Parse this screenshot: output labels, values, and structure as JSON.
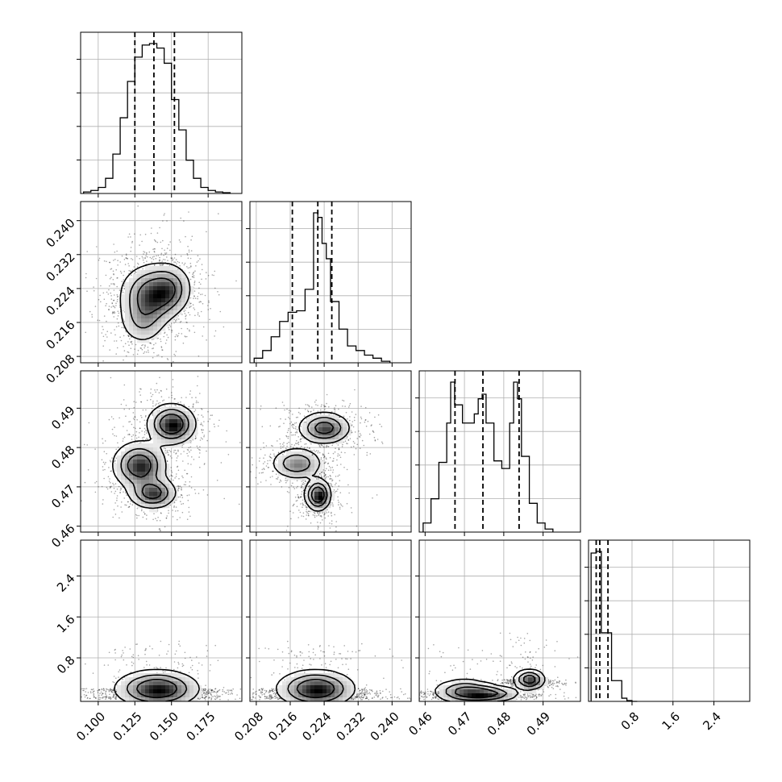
{
  "chart_data": {
    "type": "corner",
    "grid": true,
    "parameters": [
      {
        "range": [
          0.088,
          0.198
        ],
        "ticks": [
          0.1,
          0.125,
          0.15,
          0.175
        ],
        "tick_labels": [
          "0.100",
          "0.125",
          "0.150",
          "0.175"
        ],
        "quantiles": [
          0.125,
          0.138,
          0.152
        ],
        "hist": {
          "edges": [
            0.09,
            0.095,
            0.1,
            0.105,
            0.11,
            0.115,
            0.12,
            0.125,
            0.13,
            0.135,
            0.14,
            0.145,
            0.15,
            0.155,
            0.16,
            0.165,
            0.17,
            0.175,
            0.18,
            0.185,
            0.19
          ],
          "counts": [
            0.01,
            0.02,
            0.04,
            0.1,
            0.26,
            0.5,
            0.74,
            0.9,
            0.98,
            0.99,
            0.96,
            0.86,
            0.62,
            0.42,
            0.22,
            0.1,
            0.04,
            0.02,
            0.01,
            0.005
          ]
        }
      },
      {
        "range": [
          0.2065,
          0.2445
        ],
        "ticks": [
          0.208,
          0.216,
          0.224,
          0.232,
          0.24
        ],
        "tick_labels": [
          "0.208",
          "0.216",
          "0.224",
          "0.232",
          "0.240"
        ],
        "quantiles": [
          0.2165,
          0.2225,
          0.2258
        ],
        "hist": {
          "edges": [
            0.2075,
            0.2095,
            0.2115,
            0.2135,
            0.2155,
            0.2175,
            0.2195,
            0.2215,
            0.2225,
            0.2235,
            0.2245,
            0.2255,
            0.2275,
            0.2295,
            0.2315,
            0.2335,
            0.2355,
            0.2375,
            0.2395
          ],
          "counts": [
            0.03,
            0.08,
            0.17,
            0.27,
            0.33,
            0.34,
            0.48,
            0.98,
            0.95,
            0.78,
            0.68,
            0.4,
            0.22,
            0.11,
            0.08,
            0.05,
            0.03,
            0.01
          ]
        }
      },
      {
        "range": [
          0.4585,
          0.4995
        ],
        "ticks": [
          0.46,
          0.47,
          0.48,
          0.49
        ],
        "tick_labels": [
          "0.46",
          "0.47",
          "0.48",
          "0.49"
        ],
        "quantiles": [
          0.4676,
          0.4747,
          0.4839
        ],
        "hist": {
          "edges": [
            0.4595,
            0.4615,
            0.4635,
            0.4655,
            0.4665,
            0.4675,
            0.4695,
            0.4715,
            0.4725,
            0.4735,
            0.4745,
            0.4755,
            0.4775,
            0.4795,
            0.4815,
            0.4825,
            0.4835,
            0.4845,
            0.4865,
            0.4885,
            0.4905,
            0.4925
          ],
          "counts": [
            0.06,
            0.22,
            0.46,
            0.72,
            0.99,
            0.84,
            0.72,
            0.72,
            0.78,
            0.88,
            0.91,
            0.72,
            0.47,
            0.42,
            0.72,
            0.99,
            0.88,
            0.5,
            0.19,
            0.06,
            0.02
          ]
        }
      },
      {
        "range": [
          -0.05,
          3.1
        ],
        "ticks": [
          0.8,
          1.6,
          2.4
        ],
        "tick_labels": [
          "0.8",
          "1.6",
          "2.4"
        ],
        "quantiles": [
          0.1,
          0.17,
          0.33
        ],
        "hist": {
          "edges": [
            0.0,
            0.1,
            0.2,
            0.3,
            0.4,
            0.5,
            0.6,
            0.7,
            0.8,
            0.9
          ],
          "counts": [
            0.93,
            0.94,
            0.43,
            0.43,
            0.13,
            0.13,
            0.02,
            0.005,
            0.0
          ]
        }
      }
    ],
    "density_modes": {
      "1_0": [
        {
          "x": 0.135,
          "y": 0.2225,
          "sx": 0.01,
          "sy": 0.0035,
          "w": 1.0
        },
        {
          "x": 0.148,
          "y": 0.224,
          "sx": 0.008,
          "sy": 0.003,
          "w": 0.7
        },
        {
          "x": 0.13,
          "y": 0.2165,
          "sx": 0.008,
          "sy": 0.003,
          "w": 0.45
        }
      ],
      "2_0": [
        {
          "x": 0.15,
          "y": 0.486,
          "sx": 0.008,
          "sy": 0.0025,
          "w": 1.0
        },
        {
          "x": 0.128,
          "y": 0.4755,
          "sx": 0.009,
          "sy": 0.003,
          "w": 0.9
        },
        {
          "x": 0.137,
          "y": 0.4685,
          "sx": 0.008,
          "sy": 0.002,
          "w": 0.8
        }
      ],
      "2_1": [
        {
          "x": 0.224,
          "y": 0.485,
          "sx": 0.003,
          "sy": 0.002,
          "w": 0.8
        },
        {
          "x": 0.2175,
          "y": 0.476,
          "sx": 0.003,
          "sy": 0.002,
          "w": 0.6
        },
        {
          "x": 0.2225,
          "y": 0.468,
          "sx": 0.0015,
          "sy": 0.002,
          "w": 1.0
        }
      ],
      "3_0": [
        {
          "x": 0.14,
          "y": 0.2,
          "sx": 0.014,
          "sy": 0.18,
          "w": 1.0
        }
      ],
      "3_1": [
        {
          "x": 0.222,
          "y": 0.2,
          "sx": 0.0045,
          "sy": 0.18,
          "w": 1.0
        }
      ],
      "3_2": [
        {
          "x": 0.47,
          "y": 0.15,
          "sx": 0.004,
          "sy": 0.12,
          "w": 0.8
        },
        {
          "x": 0.476,
          "y": 0.1,
          "sx": 0.004,
          "sy": 0.08,
          "w": 0.8
        },
        {
          "x": 0.4865,
          "y": 0.38,
          "sx": 0.002,
          "sy": 0.1,
          "w": 1.0
        }
      ]
    }
  }
}
